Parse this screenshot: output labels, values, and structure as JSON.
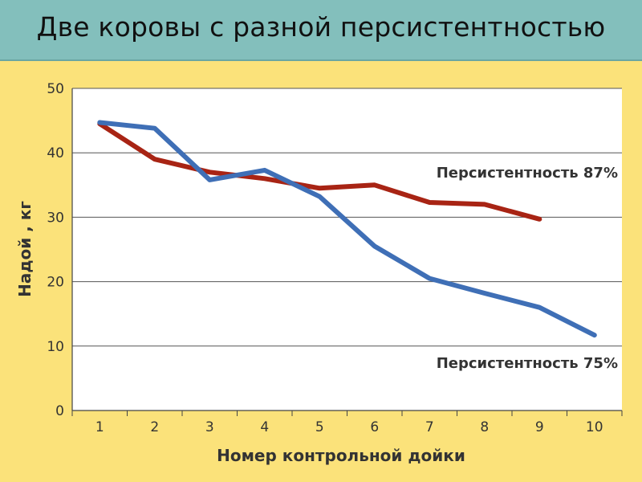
{
  "slide": {
    "title": "Две коровы с разной персистентностью"
  },
  "chart_data": {
    "type": "line",
    "title": "",
    "xlabel": "Номер контрольной дойки",
    "ylabel": "Надой , кг",
    "x": [
      1,
      2,
      3,
      4,
      5,
      6,
      7,
      8,
      9,
      10
    ],
    "xlim": [
      0.5,
      10.5
    ],
    "ylim": [
      0,
      50
    ],
    "yticks": [
      0,
      10,
      20,
      30,
      40,
      50
    ],
    "grid": true,
    "series": [
      {
        "name": "Персистентность 87%",
        "color": "#a82414",
        "x": [
          1,
          2,
          3,
          4,
          5,
          6,
          7,
          8,
          9
        ],
        "values": [
          44.5,
          39,
          37,
          36,
          34.5,
          35,
          32.3,
          32,
          29.7
        ]
      },
      {
        "name": "Персистентность 75%",
        "color": "#3f6fb6",
        "x": [
          1,
          2,
          3,
          4,
          5,
          6,
          7,
          8,
          9,
          10
        ],
        "values": [
          44.7,
          43.8,
          35.8,
          37.3,
          33.2,
          25.5,
          20.5,
          18.2,
          16,
          11.7
        ]
      }
    ]
  }
}
